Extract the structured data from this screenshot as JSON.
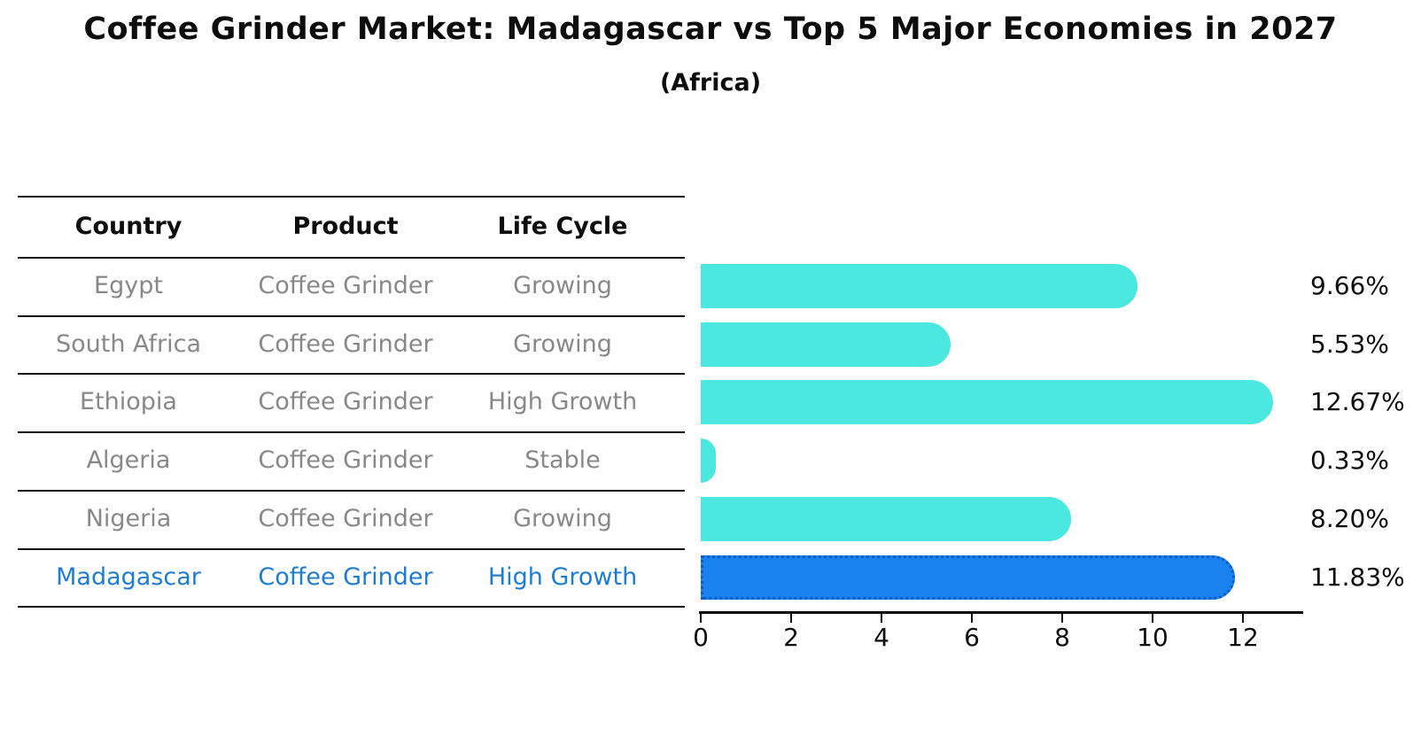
{
  "title": "Coffee Grinder Market: Madagascar vs Top 5 Major Economies in 2027",
  "subtitle": "(Africa)",
  "table": {
    "headers": [
      "Country",
      "Product",
      "Life Cycle"
    ],
    "rows": [
      {
        "country": "Egypt",
        "product": "Coffee Grinder",
        "life_cycle": "Growing",
        "highlight": false
      },
      {
        "country": "South Africa",
        "product": "Coffee Grinder",
        "life_cycle": "Growing",
        "highlight": false
      },
      {
        "country": "Ethiopia",
        "product": "Coffee Grinder",
        "life_cycle": "High Growth",
        "highlight": false
      },
      {
        "country": "Algeria",
        "product": "Coffee Grinder",
        "life_cycle": "Stable",
        "highlight": false
      },
      {
        "country": "Nigeria",
        "product": "Coffee Grinder",
        "life_cycle": "Growing",
        "highlight": false
      },
      {
        "country": "Madagascar",
        "product": "Coffee Grinder",
        "life_cycle": "High Growth",
        "highlight": true
      }
    ]
  },
  "chart_data": {
    "type": "bar",
    "orientation": "horizontal",
    "categories": [
      "Egypt",
      "South Africa",
      "Ethiopia",
      "Algeria",
      "Nigeria",
      "Madagascar"
    ],
    "values": [
      9.66,
      5.53,
      12.67,
      0.33,
      8.2,
      11.83
    ],
    "value_labels": [
      "9.66%",
      "5.53%",
      "12.67%",
      "0.33%",
      "8.20%",
      "11.83%"
    ],
    "x_ticks": [
      0,
      2,
      4,
      6,
      8,
      10,
      12
    ],
    "xlim": [
      0,
      13.3
    ],
    "grid": false,
    "legend": "none",
    "highlight_index": 5
  },
  "colors": {
    "bar": "#4ae8e0",
    "highlight_bar": "#1a82ee",
    "highlight_border": "#0c5cc8",
    "row_text": "#888888",
    "highlight_text": "#1f7cd1",
    "axis": "#0d0d0d"
  }
}
